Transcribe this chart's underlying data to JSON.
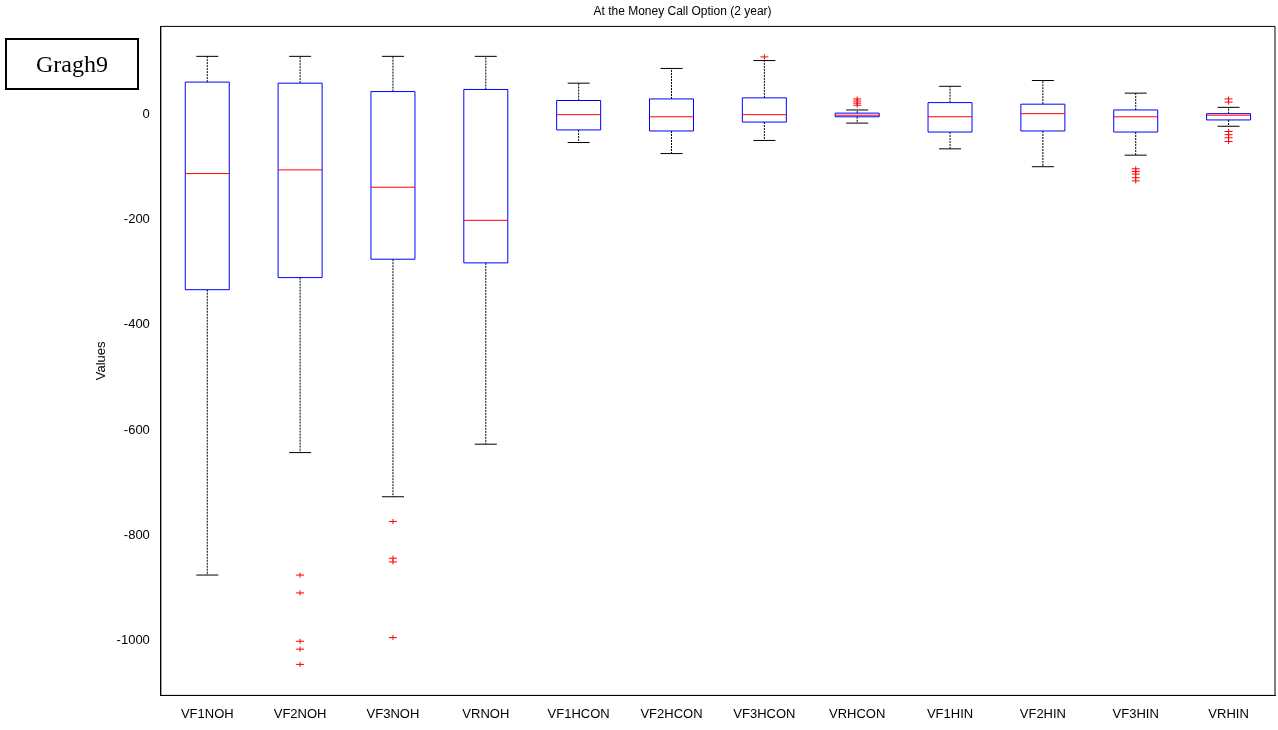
{
  "chart_data": {
    "type": "box",
    "title": "At the Money Call Option (2 year)",
    "ylabel": "Values",
    "categories": [
      "VF1NOH",
      "VF2NOH",
      "VF3NOH",
      "VRNOH",
      "VF1HCON",
      "VF2HCON",
      "VF3HCON",
      "VRHCON",
      "VF1HIN",
      "VF2HIN",
      "VF3HIN",
      "VRHIN"
    ],
    "color": "#0000ff",
    "boxes": [
      {
        "low": -876,
        "q1": -333,
        "median": -112,
        "q3": 62,
        "high": 111
      },
      {
        "low": -643,
        "q1": -310,
        "median": -105,
        "q3": 60,
        "high": 111,
        "outliers": [
          -876,
          -910,
          -1002,
          -1017,
          -1046
        ]
      },
      {
        "low": -727,
        "q1": -275,
        "median": -138,
        "q3": 44,
        "high": 111,
        "outliers": [
          -774,
          -844,
          -851,
          -995
        ]
      },
      {
        "low": -627,
        "q1": -282,
        "median": -201,
        "q3": 48,
        "high": 111
      },
      {
        "low": -53,
        "q1": -29,
        "median": 0,
        "q3": 27,
        "high": 60
      },
      {
        "low": -74,
        "q1": -31,
        "median": -4,
        "q3": 30,
        "high": 88
      },
      {
        "low": -49,
        "q1": -14,
        "median": 0,
        "q3": 32,
        "high": 103,
        "outliers": [
          110
        ]
      },
      {
        "low": -16,
        "q1": -4,
        "median": -1,
        "q3": 3,
        "high": 9,
        "outliers": [
          18,
          22,
          26,
          30
        ]
      },
      {
        "low": -65,
        "q1": -33,
        "median": -4,
        "q3": 23,
        "high": 54
      },
      {
        "low": -99,
        "q1": -31,
        "median": 2,
        "q3": 20,
        "high": 65
      },
      {
        "low": -77,
        "q1": -33,
        "median": -4,
        "q3": 9,
        "high": 41,
        "outliers": [
          -103,
          -108,
          -113,
          -120,
          -126
        ]
      },
      {
        "low": -22,
        "q1": -10,
        "median": -1,
        "q3": 2,
        "high": 14,
        "outliers": [
          24,
          30,
          -32,
          -38,
          -44,
          -51
        ]
      }
    ],
    "ylim": [
      -1105,
      168
    ],
    "yticks": [
      -1000,
      -800,
      -600,
      -400,
      -200,
      0
    ],
    "annotations": [
      "Gragh9"
    ]
  }
}
